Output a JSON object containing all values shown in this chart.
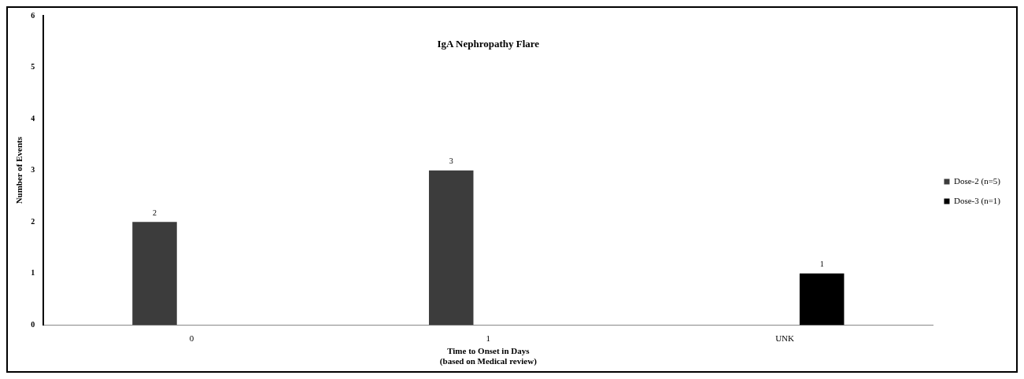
{
  "chart_data": {
    "type": "bar",
    "title": "IgA Nephropathy Flare",
    "xlabel": "Time to Onset in Days\n(based on Medical review)",
    "ylabel": "Number of Events",
    "categories": [
      "0",
      "1",
      "UNK"
    ],
    "series": [
      {
        "name": "Dose-2 (n=5)",
        "color": "#3c3c3c",
        "values": [
          2,
          3,
          null
        ]
      },
      {
        "name": "Dose-3 (n=1)",
        "color": "#000000",
        "values": [
          null,
          null,
          1
        ]
      }
    ],
    "ylim": [
      0,
      6
    ],
    "yticks": [
      0,
      1,
      2,
      3,
      4,
      5,
      6
    ],
    "grid": false,
    "legend": "right",
    "data_labels": true
  }
}
